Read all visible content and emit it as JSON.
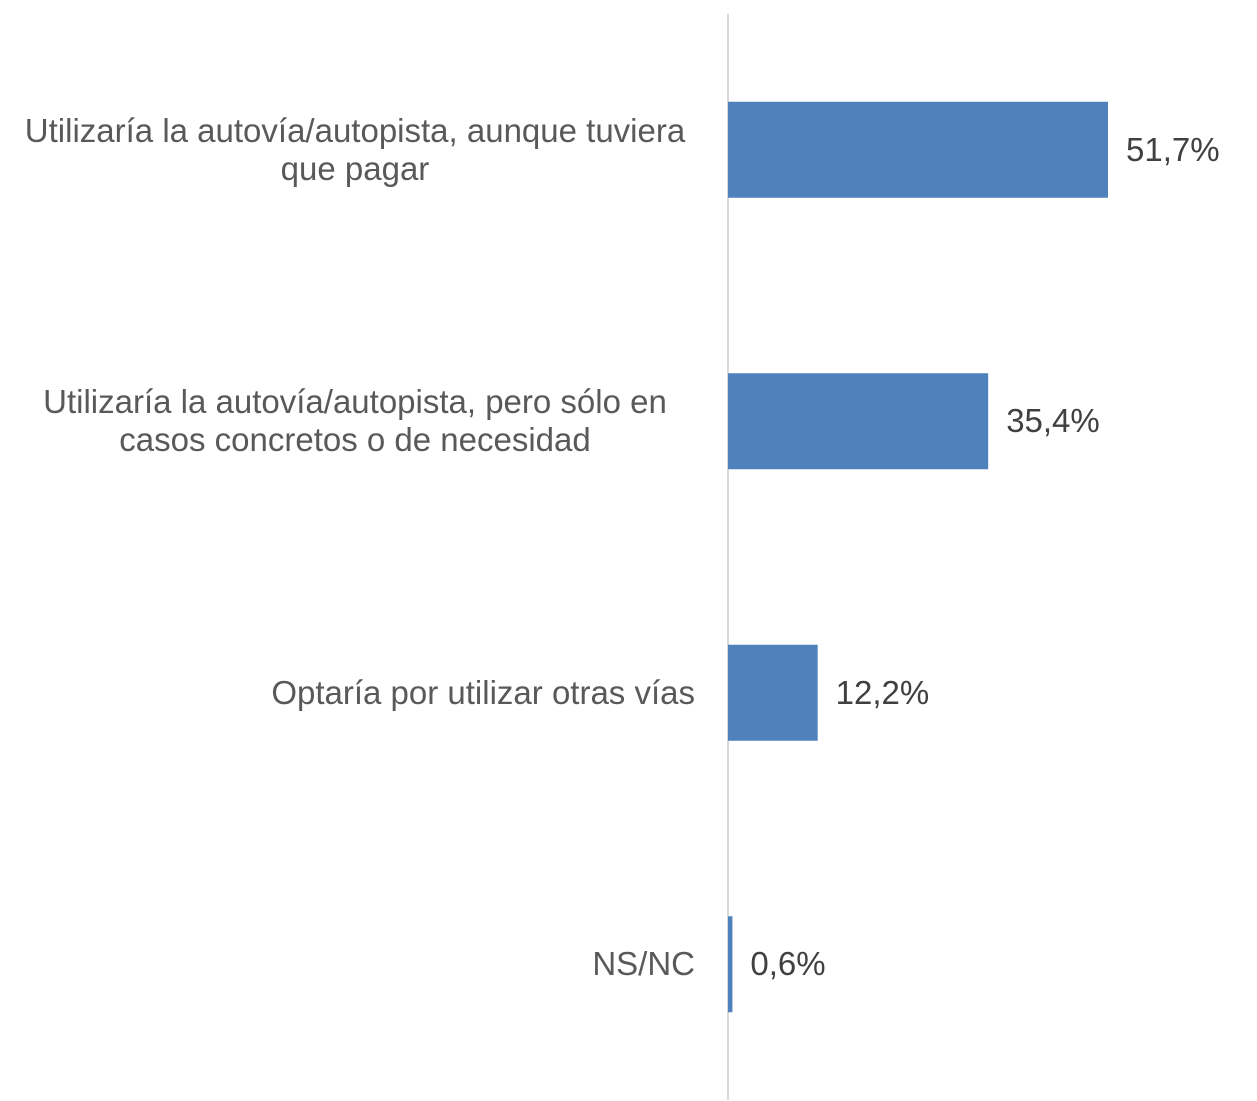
{
  "chart_data": {
    "type": "bar",
    "orientation": "horizontal",
    "categories": [
      "Utilizaría la autovía/autopista, aunque tuviera que pagar",
      "Utilizaría la autovía/autopista, pero sólo en casos concretos o de necesidad",
      "Optaría por utilizar otras vías",
      "NS/NC"
    ],
    "values": [
      51.7,
      35.4,
      12.2,
      0.6
    ],
    "value_labels": [
      "51,7%",
      "35,4%",
      "12,2%",
      "0,6%"
    ],
    "color": "#4f81bd",
    "xlim": [
      0,
      60
    ]
  }
}
